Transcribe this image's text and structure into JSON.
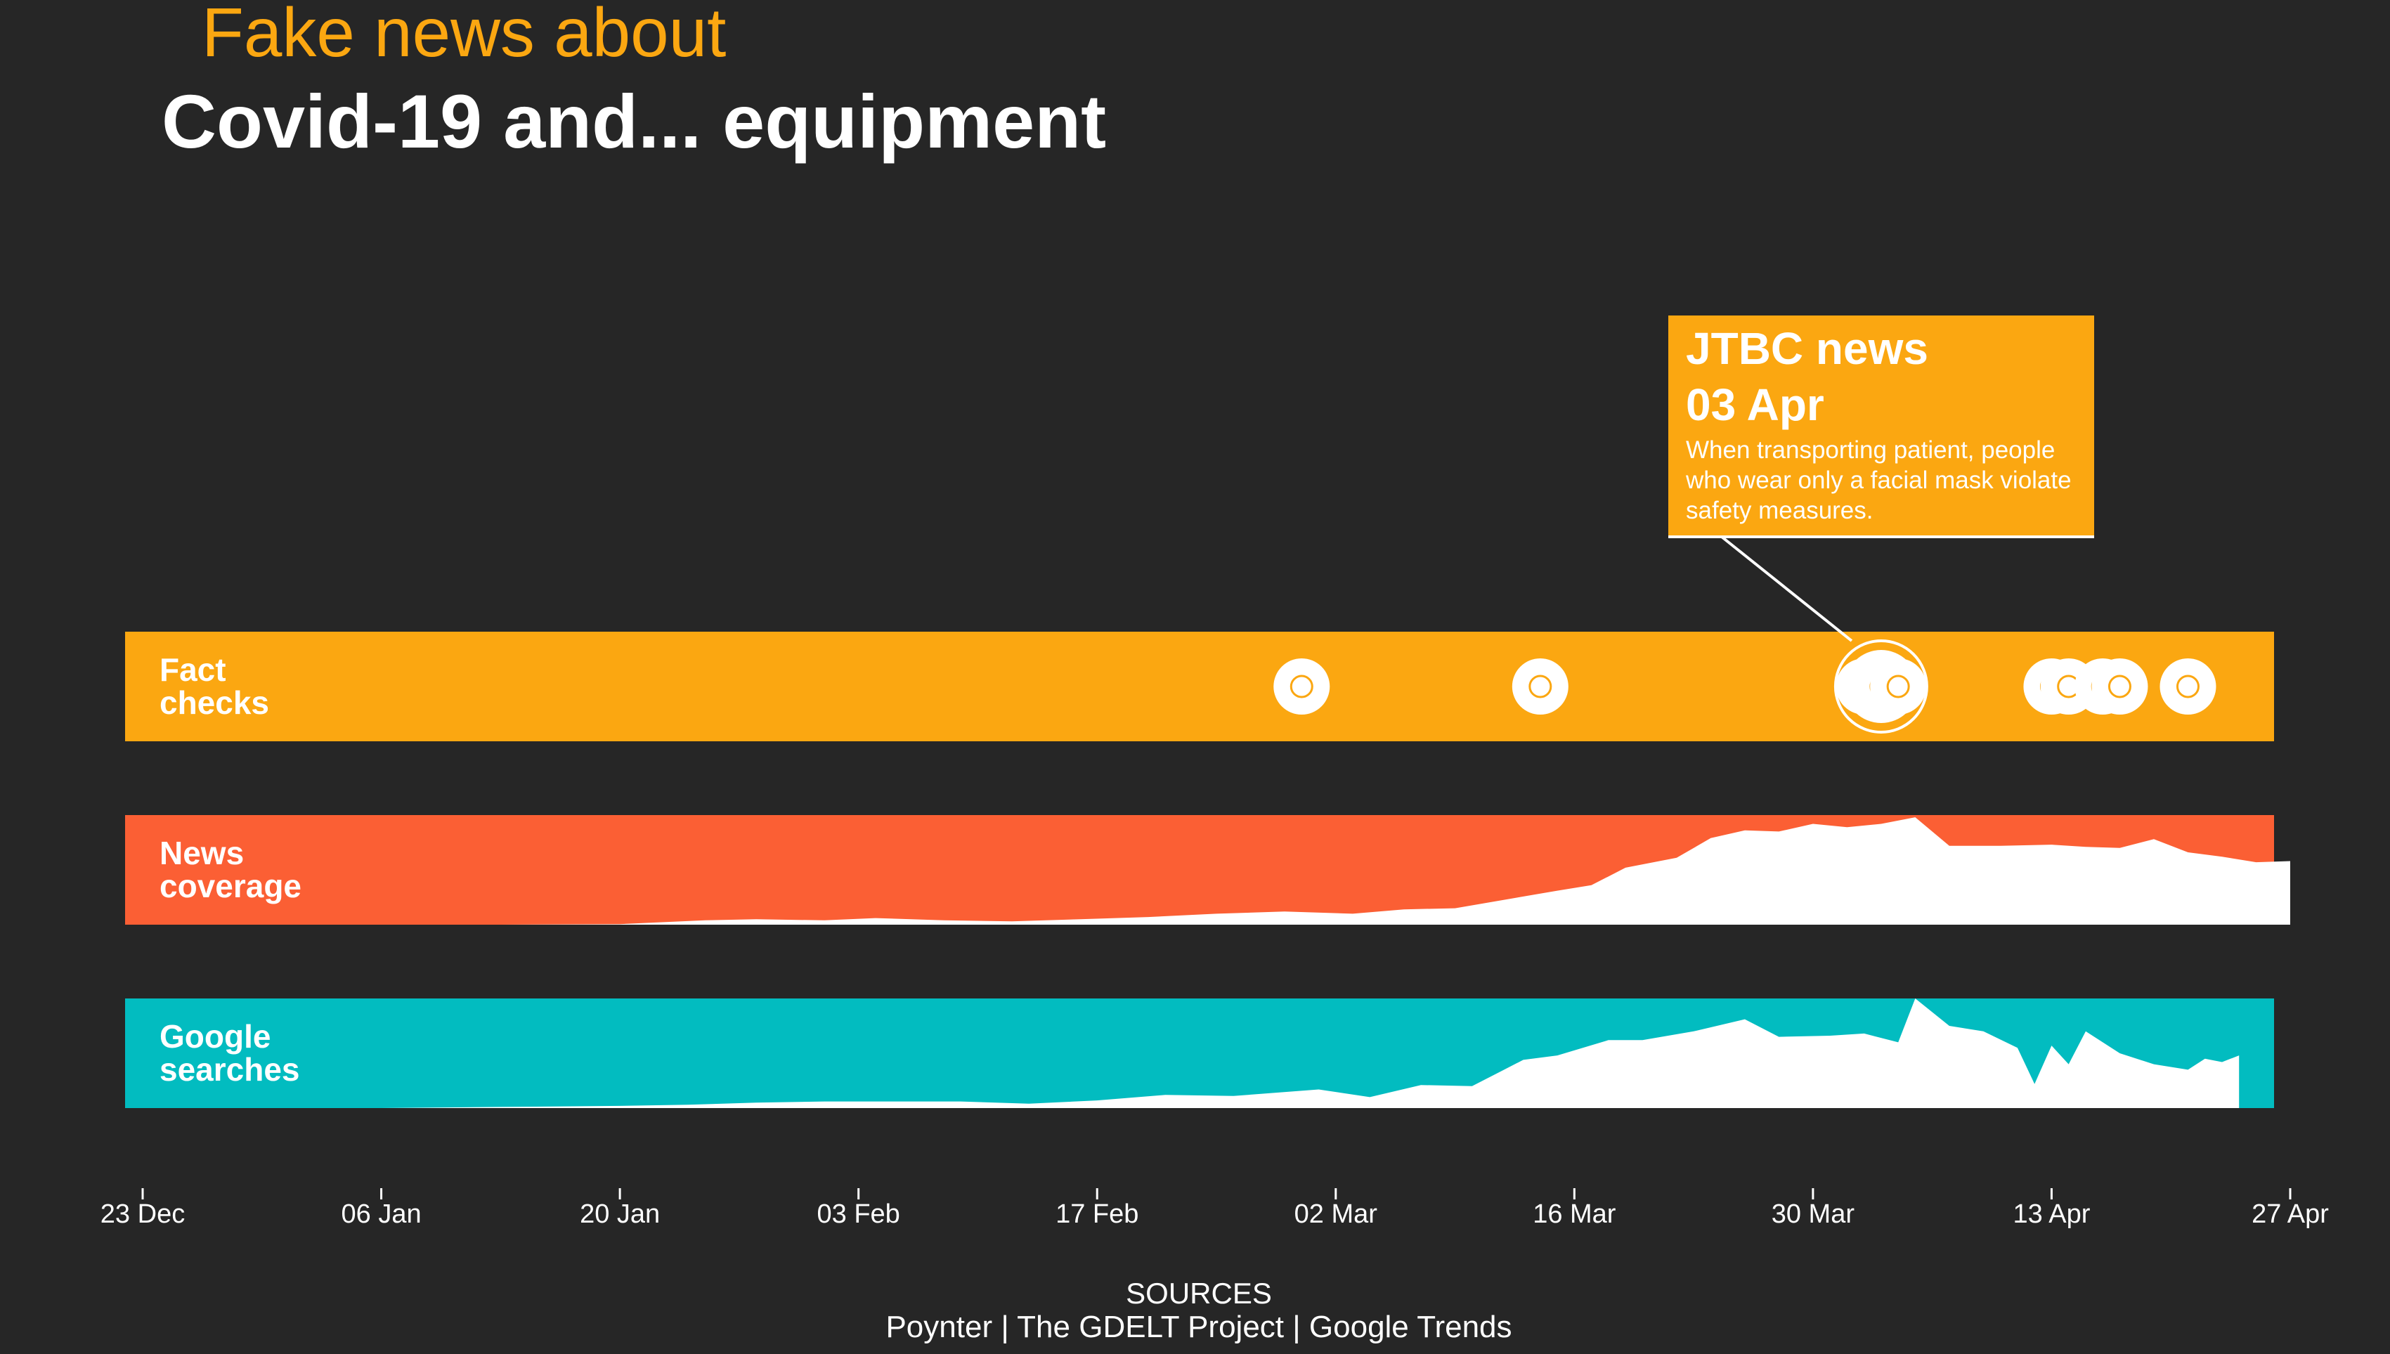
{
  "chart_data": {
    "type": "area",
    "title_line1": "Fake news about",
    "title_line2": "Covid-19 and... equipment",
    "x_range": [
      "2019-12-23",
      "2020-04-27"
    ],
    "x_ticks": [
      "23 Dec",
      "06 Jan",
      "20 Jan",
      "03 Feb",
      "17 Feb",
      "02 Mar",
      "16 Mar",
      "30 Mar",
      "13 Apr",
      "27 Apr"
    ],
    "rows": {
      "fact_checks": {
        "label_line1": "Fact",
        "label_line2": "checks",
        "color": "#FBA711"
      },
      "news_coverage": {
        "label_line1": "News",
        "label_line2": "coverage",
        "color": "#FB5F34"
      },
      "google_searches": {
        "label_line1": "Google",
        "label_line2": "searches",
        "color": "#02BCC0"
      }
    },
    "fact_checks": [
      {
        "date": "2020-02-29",
        "count": 1
      },
      {
        "date": "2020-03-14",
        "count": 1
      },
      {
        "date": "2020-04-02",
        "count": 1
      },
      {
        "date": "2020-04-03",
        "count": 2
      },
      {
        "date": "2020-04-04",
        "count": 1
      },
      {
        "date": "2020-04-13",
        "count": 1
      },
      {
        "date": "2020-04-14",
        "count": 1
      },
      {
        "date": "2020-04-16",
        "count": 1
      },
      {
        "date": "2020-04-17",
        "count": 1
      },
      {
        "date": "2020-04-21",
        "count": 1
      }
    ],
    "news_coverage": {
      "dates": [
        "2019-12-23",
        "2019-12-30",
        "2020-01-06",
        "2020-01-13",
        "2020-01-20",
        "2020-01-25",
        "2020-01-28",
        "2020-02-01",
        "2020-02-04",
        "2020-02-08",
        "2020-02-12",
        "2020-02-16",
        "2020-02-20",
        "2020-02-24",
        "2020-02-28",
        "2020-03-03",
        "2020-03-06",
        "2020-03-09",
        "2020-03-12",
        "2020-03-15",
        "2020-03-17",
        "2020-03-19",
        "2020-03-22",
        "2020-03-24",
        "2020-03-26",
        "2020-03-28",
        "2020-03-30",
        "2020-04-01",
        "2020-04-03",
        "2020-04-05",
        "2020-04-07",
        "2020-04-10",
        "2020-04-13",
        "2020-04-15",
        "2020-04-17",
        "2020-04-19",
        "2020-04-21",
        "2020-04-23",
        "2020-04-25",
        "2020-04-27"
      ],
      "values": [
        0,
        0,
        0,
        0,
        0.5,
        4,
        5,
        4,
        6,
        4,
        3,
        5,
        7,
        10,
        12,
        10,
        14,
        15,
        23,
        31,
        36,
        52,
        61,
        79,
        86,
        85,
        92,
        89,
        92,
        98,
        72,
        72,
        73,
        71,
        70,
        78,
        66,
        62,
        57,
        58
      ]
    },
    "google_searches": {
      "dates": [
        "2019-12-23",
        "2020-01-06",
        "2020-01-13",
        "2020-01-20",
        "2020-01-24",
        "2020-01-28",
        "2020-02-01",
        "2020-02-05",
        "2020-02-09",
        "2020-02-13",
        "2020-02-17",
        "2020-02-21",
        "2020-02-25",
        "2020-03-01",
        "2020-03-04",
        "2020-03-07",
        "2020-03-10",
        "2020-03-13",
        "2020-03-15",
        "2020-03-18",
        "2020-03-20",
        "2020-03-23",
        "2020-03-26",
        "2020-03-28",
        "2020-03-31",
        "2020-04-02",
        "2020-04-04",
        "2020-04-05",
        "2020-04-07",
        "2020-04-09",
        "2020-04-11",
        "2020-04-12",
        "2020-04-13",
        "2020-04-14",
        "2020-04-15",
        "2020-04-17",
        "2020-04-19",
        "2020-04-21",
        "2020-04-22",
        "2020-04-23",
        "2020-04-24"
      ],
      "values": [
        0,
        0,
        1,
        2,
        3,
        5,
        6,
        6,
        6,
        4,
        7,
        12,
        11,
        17,
        10,
        21,
        20,
        44,
        48,
        62,
        62,
        70,
        81,
        65,
        66,
        68,
        60,
        100,
        75,
        70,
        55,
        22,
        57,
        40,
        70,
        50,
        40,
        35,
        45,
        42,
        48
      ]
    },
    "annotation": {
      "source": "JTBC news",
      "date_label": "03 Apr",
      "date": "2020-04-03",
      "text": "When transporting patient, people who wear only a facial mask violate safety measures.",
      "text_lines": [
        "When transporting patient, people",
        "who wear only a facial mask violate",
        "safety measures."
      ]
    },
    "sources_heading": "SOURCES",
    "sources_text": "Poynter | The GDELT Project | Google Trends"
  }
}
